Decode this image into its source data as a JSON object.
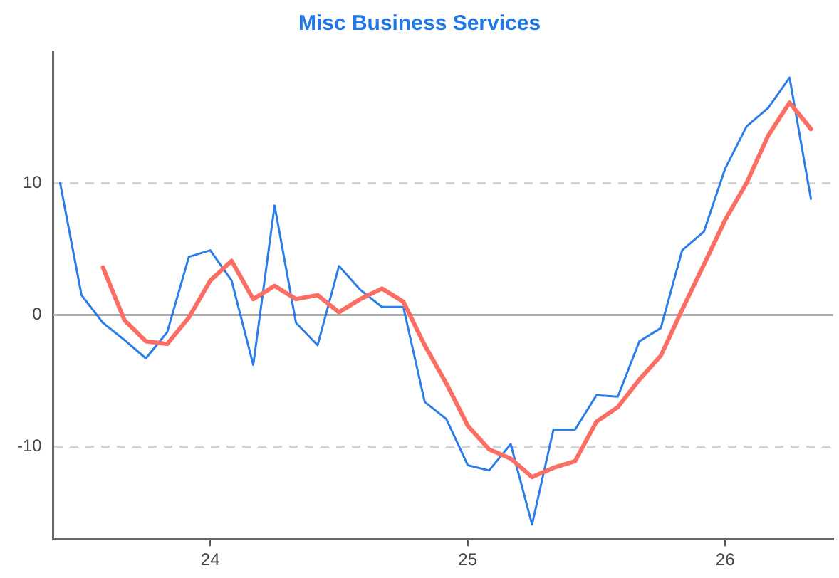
{
  "chart_data": {
    "type": "line",
    "title": "Misc Business Services",
    "x": [
      23.417,
      23.5,
      23.583,
      23.667,
      23.75,
      23.833,
      23.917,
      24,
      24.083,
      24.167,
      24.25,
      24.333,
      24.417,
      24.5,
      24.583,
      24.667,
      24.75,
      24.833,
      24.917,
      25,
      25.083,
      25.167,
      25.25,
      25.333,
      25.417,
      25.5,
      25.583,
      25.667,
      25.75,
      25.833,
      25.917,
      26,
      26.083,
      26.167,
      26.25,
      26.333
    ],
    "series": [
      {
        "color": "#2b7de9",
        "values": [
          10,
          1.5,
          -0.6,
          -1.9,
          -3.3,
          -1.3,
          4.4,
          4.9,
          2.6,
          -3.8,
          8.3,
          -0.6,
          -2.3,
          3.7,
          1.9,
          0.6,
          0.6,
          -6.6,
          -7.9,
          -11.4,
          -11.8,
          -9.8,
          -15.9,
          -8.7,
          -8.7,
          -6.1,
          -6.2,
          -2.0,
          -1.0,
          4.9,
          6.3,
          11.1,
          14.3,
          15.7,
          18.0,
          8.8
        ]
      },
      {
        "color": "#fa6e63",
        "x": [
          23.583,
          23.667,
          23.75,
          23.833,
          23.917,
          24,
          24.083,
          24.167,
          24.25,
          24.333,
          24.417,
          24.5,
          24.583,
          24.667,
          24.75,
          24.833,
          24.917,
          25,
          25.083,
          25.167,
          25.25,
          25.333,
          25.417,
          25.5,
          25.583,
          25.667,
          25.75,
          25.833,
          25.917,
          26,
          26.083,
          26.167,
          26.25,
          26.333
        ],
        "values": [
          3.6,
          -0.4,
          -2.0,
          -2.2,
          -0.2,
          2.6,
          4.1,
          1.2,
          2.2,
          1.2,
          1.5,
          0.2,
          1.2,
          2.0,
          1.0,
          -2.3,
          -5.2,
          -8.4,
          -10.2,
          -10.9,
          -12.3,
          -11.6,
          -11.1,
          -8.1,
          -7.0,
          -4.9,
          -3.1,
          0.4,
          3.8,
          7.2,
          10.0,
          13.6,
          16.1,
          14.1
        ]
      }
    ],
    "xlim": [
      23.39,
      26.42
    ],
    "xticks": [
      24,
      25,
      26
    ],
    "ylim": [
      -17,
      20
    ],
    "yticks": [
      -10,
      0,
      10
    ],
    "grid": "y",
    "legend": false,
    "marker": "none",
    "ref_lines": [
      {
        "axis": "y",
        "value": 0,
        "color": "#aaaaaa"
      }
    ]
  }
}
